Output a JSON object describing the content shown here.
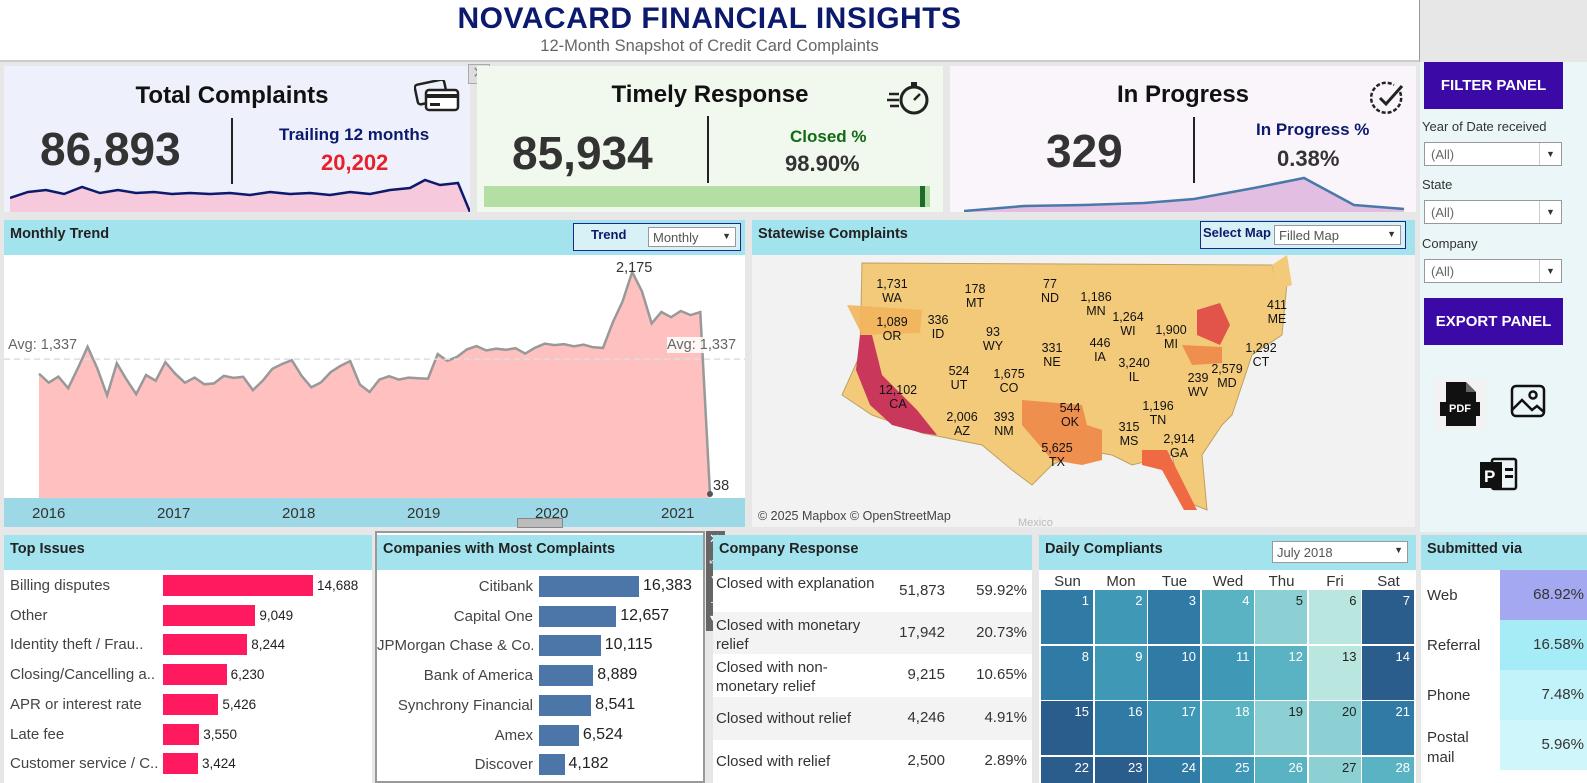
{
  "header": {
    "title": "NOVACARD FINANCIAL INSIGHTS",
    "subtitle": "12-Month Snapshot of Credit Card Complaints"
  },
  "kpis": {
    "total": {
      "title": "Total Complaints",
      "value": "86,893",
      "side_label": "Trailing 12 months",
      "side_value": "20,202",
      "icon": "credit-card-icon"
    },
    "timely": {
      "title": "Timely Response",
      "value": "85,934",
      "side_label": "Closed %",
      "side_value": "98.90%",
      "progress": 0.989,
      "icon": "stopwatch-icon"
    },
    "progress": {
      "title": "In Progress",
      "value": "329",
      "side_label": "In Progress %",
      "side_value": "0.38%",
      "icon": "check-circle-icon"
    }
  },
  "filters": {
    "filter_button": "FILTER PANEL",
    "year_label": "Year of Date received",
    "year_value": "(All)",
    "state_label": "State",
    "state_value": "(All)",
    "company_label": "Company",
    "company_value": "(All)",
    "export_button": "EXPORT PANEL",
    "export_icons": [
      "pdf-icon",
      "image-icon",
      "powerpoint-icon"
    ],
    "pdf_text": "PDF"
  },
  "trend": {
    "title": "Monthly Trend",
    "control_label": "Trend",
    "control_value": "Monthly",
    "avg_label_left": "Avg: 1,337",
    "avg_label_right": "Avg: 1,337",
    "peak_label": "2,175",
    "last_label": "38"
  },
  "chart_data": {
    "type": "area",
    "title": "Monthly Trend",
    "x_ticks": [
      "2016",
      "2017",
      "2018",
      "2019",
      "2020",
      "2021"
    ],
    "avg": 1337,
    "ylim": [
      0,
      2300
    ],
    "values": [
      1197,
      1110,
      1168,
      1057,
      1250,
      1455,
      1248,
      987,
      1297,
      1140,
      1000,
      1184,
      1129,
      1307,
      1197,
      1110,
      1159,
      1094,
      1103,
      1175,
      1156,
      1166,
      1038,
      1128,
      1244,
      1290,
      1326,
      1176,
      1065,
      1112,
      1212,
      1271,
      1317,
      1091,
      1020,
      1139,
      1172,
      1139,
      1159,
      1152,
      1148,
      1385,
      1320,
      1359,
      1430,
      1462,
      1419,
      1438,
      1426,
      1442,
      1390,
      1445,
      1485,
      1471,
      1481,
      1459,
      1475,
      1450,
      1444,
      1690,
      1890,
      2175,
      1990,
      1680,
      1790,
      1740,
      1800,
      1760,
      1790,
      38
    ]
  },
  "map": {
    "title": "Statewise Complaints",
    "control_label": "Select Map",
    "control_value": "Filled Map",
    "credit": "© 2025 Mapbox © OpenStreetMap",
    "mexico": "Mexico",
    "states": [
      {
        "abbr": "WA",
        "value": "1,731"
      },
      {
        "abbr": "OR",
        "value": "1,089"
      },
      {
        "abbr": "MT",
        "value": "178"
      },
      {
        "abbr": "ND",
        "value": "77"
      },
      {
        "abbr": "MN",
        "value": "1,186"
      },
      {
        "abbr": "ID",
        "value": "336"
      },
      {
        "abbr": "WY",
        "value": "93"
      },
      {
        "abbr": "WI",
        "value": "1,264"
      },
      {
        "abbr": "MI",
        "value": "1,900"
      },
      {
        "abbr": "ME",
        "value": "411"
      },
      {
        "abbr": "NE",
        "value": "331"
      },
      {
        "abbr": "IA",
        "value": "446"
      },
      {
        "abbr": "UT",
        "value": "524"
      },
      {
        "abbr": "CO",
        "value": "1,675"
      },
      {
        "abbr": "IL",
        "value": "3,240"
      },
      {
        "abbr": "CT",
        "value": "1,292"
      },
      {
        "abbr": "MD",
        "value": "2,579"
      },
      {
        "abbr": "WV",
        "value": "239"
      },
      {
        "abbr": "CA",
        "value": "12,102"
      },
      {
        "abbr": "AZ",
        "value": "2,006"
      },
      {
        "abbr": "NM",
        "value": "393"
      },
      {
        "abbr": "OK",
        "value": "544"
      },
      {
        "abbr": "TN",
        "value": "1,196"
      },
      {
        "abbr": "MS",
        "value": "315"
      },
      {
        "abbr": "GA",
        "value": "2,914"
      },
      {
        "abbr": "TX",
        "value": "5,625"
      }
    ]
  },
  "issues": {
    "title": "Top Issues",
    "items": [
      {
        "label": "Billing disputes",
        "value": 14688,
        "text": "14,688"
      },
      {
        "label": "Other",
        "value": 9049,
        "text": "9,049"
      },
      {
        "label": "Identity theft / Frau..",
        "value": 8244,
        "text": "8,244"
      },
      {
        "label": "Closing/Cancelling a..",
        "value": 6230,
        "text": "6,230"
      },
      {
        "label": "APR or interest rate",
        "value": 5426,
        "text": "5,426"
      },
      {
        "label": "Late fee",
        "value": 3550,
        "text": "3,550"
      },
      {
        "label": "Customer service / C..",
        "value": 3424,
        "text": "3,424"
      }
    ]
  },
  "companies": {
    "title": "Companies with Most Complaints",
    "items": [
      {
        "label": "Citibank",
        "value": 16383,
        "text": "16,383"
      },
      {
        "label": "Capital One",
        "value": 12657,
        "text": "12,657"
      },
      {
        "label": "JPMorgan Chase & Co.",
        "value": 10115,
        "text": "10,115"
      },
      {
        "label": "Bank of America",
        "value": 8889,
        "text": "8,889"
      },
      {
        "label": "Synchrony Financial",
        "value": 8541,
        "text": "8,541"
      },
      {
        "label": "Amex",
        "value": 6524,
        "text": "6,524"
      },
      {
        "label": "Discover",
        "value": 4182,
        "text": "4,182"
      }
    ]
  },
  "response": {
    "title": "Company Response",
    "rows": [
      {
        "label": "Closed with explanation",
        "count": "51,873",
        "pct": "59.92%"
      },
      {
        "label": "Closed with monetary relief",
        "count": "17,942",
        "pct": "20.73%"
      },
      {
        "label": "Closed with non-monetary relief",
        "count": "9,215",
        "pct": "10.65%"
      },
      {
        "label": "Closed without relief",
        "count": "4,246",
        "pct": "4.91%"
      },
      {
        "label": "Closed with relief",
        "count": "2,500",
        "pct": "2.89%"
      }
    ]
  },
  "daily": {
    "title": "Daily Compliants",
    "month": "July 2018",
    "days": [
      "Sun",
      "Mon",
      "Tue",
      "Wed",
      "Thu",
      "Fri",
      "Sat"
    ],
    "shades": [
      2,
      1,
      2,
      0,
      -1,
      -2,
      4,
      2,
      1,
      2,
      1,
      0,
      -2,
      3,
      3,
      2,
      1,
      0,
      -1,
      -1,
      2,
      3,
      3,
      2,
      1,
      0,
      -1,
      0
    ]
  },
  "submitted": {
    "title": "Submitted via",
    "rows": [
      {
        "label": "Web",
        "pct": "68.92%",
        "color": "#a3a8f0"
      },
      {
        "label": "Referral",
        "pct": "16.58%",
        "color": "#a6ecf6"
      },
      {
        "label": "Phone",
        "pct": "7.48%",
        "color": "#c3f3fa"
      },
      {
        "label": "Postal mail",
        "pct": "5.96%",
        "color": "#cff6fb"
      }
    ]
  }
}
